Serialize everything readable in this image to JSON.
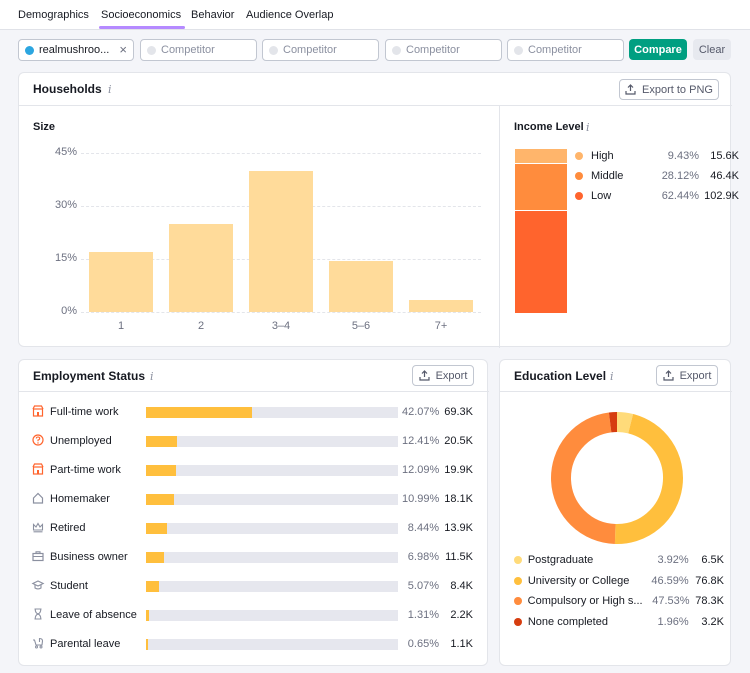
{
  "tabs": [
    {
      "label": "Demographics",
      "active": false
    },
    {
      "label": "Socioeconomics",
      "active": true
    },
    {
      "label": "Behavior",
      "active": false
    },
    {
      "label": "Audience Overlap",
      "active": false
    }
  ],
  "compare": {
    "domain": "realmushroo...",
    "domain_color": "#2ca6e0",
    "competitor_placeholder": "Competitor",
    "compare_label": "Compare",
    "clear_label": "Clear"
  },
  "households": {
    "title": "Households",
    "export_label": "Export to PNG",
    "size_title": "Size",
    "income_title": "Income Level"
  },
  "chart_data": [
    {
      "type": "bar",
      "title": "Size",
      "categories": [
        "1",
        "2",
        "3–4",
        "5–6",
        "7+"
      ],
      "values": [
        17,
        25,
        40,
        14.5,
        3.5
      ],
      "yticks": [
        "45%",
        "30%",
        "15%",
        "0%"
      ],
      "ylim": [
        0,
        45
      ],
      "color": "#ffdb9a",
      "grid": true
    },
    {
      "type": "bar",
      "title": "Income Level",
      "stacked": true,
      "categories": [
        "High",
        "Middle",
        "Low"
      ],
      "percent": [
        "9.43%",
        "28.12%",
        "62.44%"
      ],
      "percent_values": [
        9.43,
        28.12,
        62.44
      ],
      "counts": [
        "15.6K",
        "46.4K",
        "102.9K"
      ],
      "colors": [
        "#ffb56b",
        "#ff8c3d",
        "#ff642d"
      ]
    },
    {
      "type": "pie",
      "title": "Education Level",
      "donut": true,
      "labels": [
        "Postgraduate",
        "University or College",
        "Compulsory or High s...",
        "None completed"
      ],
      "percent": [
        "3.92%",
        "46.59%",
        "47.53%",
        "1.96%"
      ],
      "percent_values": [
        3.92,
        46.59,
        47.53,
        1.96
      ],
      "counts": [
        "6.5K",
        "76.8K",
        "78.3K",
        "3.2K"
      ],
      "colors": [
        "#ffdb7a",
        "#ffbf3d",
        "#ff8c3d",
        "#d63d0f"
      ]
    }
  ],
  "employment": {
    "title": "Employment Status",
    "export_label": "Export",
    "rows": [
      {
        "label": "Full-time work",
        "pct": "42.07%",
        "pct_value": 42.07,
        "count": "69.3K",
        "icon": "shop-icon"
      },
      {
        "label": "Unemployed",
        "pct": "12.41%",
        "pct_value": 12.41,
        "count": "20.5K",
        "icon": "question-circle-icon"
      },
      {
        "label": "Part-time work",
        "pct": "12.09%",
        "pct_value": 12.09,
        "count": "19.9K",
        "icon": "shop-icon"
      },
      {
        "label": "Homemaker",
        "pct": "10.99%",
        "pct_value": 10.99,
        "count": "18.1K",
        "icon": "home-icon"
      },
      {
        "label": "Retired",
        "pct": "8.44%",
        "pct_value": 8.44,
        "count": "13.9K",
        "icon": "crown-icon"
      },
      {
        "label": "Business owner",
        "pct": "6.98%",
        "pct_value": 6.98,
        "count": "11.5K",
        "icon": "briefcase-icon"
      },
      {
        "label": "Student",
        "pct": "5.07%",
        "pct_value": 5.07,
        "count": "8.4K",
        "icon": "graduation-cap-icon"
      },
      {
        "label": "Leave of absence",
        "pct": "1.31%",
        "pct_value": 1.31,
        "count": "2.2K",
        "icon": "hourglass-icon"
      },
      {
        "label": "Parental leave",
        "pct": "0.65%",
        "pct_value": 0.65,
        "count": "1.1K",
        "icon": "stroller-icon"
      }
    ]
  },
  "education": {
    "title": "Education Level",
    "export_label": "Export"
  },
  "icons": {
    "info": "info-icon",
    "export": "upload-icon",
    "clear": "close-icon"
  }
}
